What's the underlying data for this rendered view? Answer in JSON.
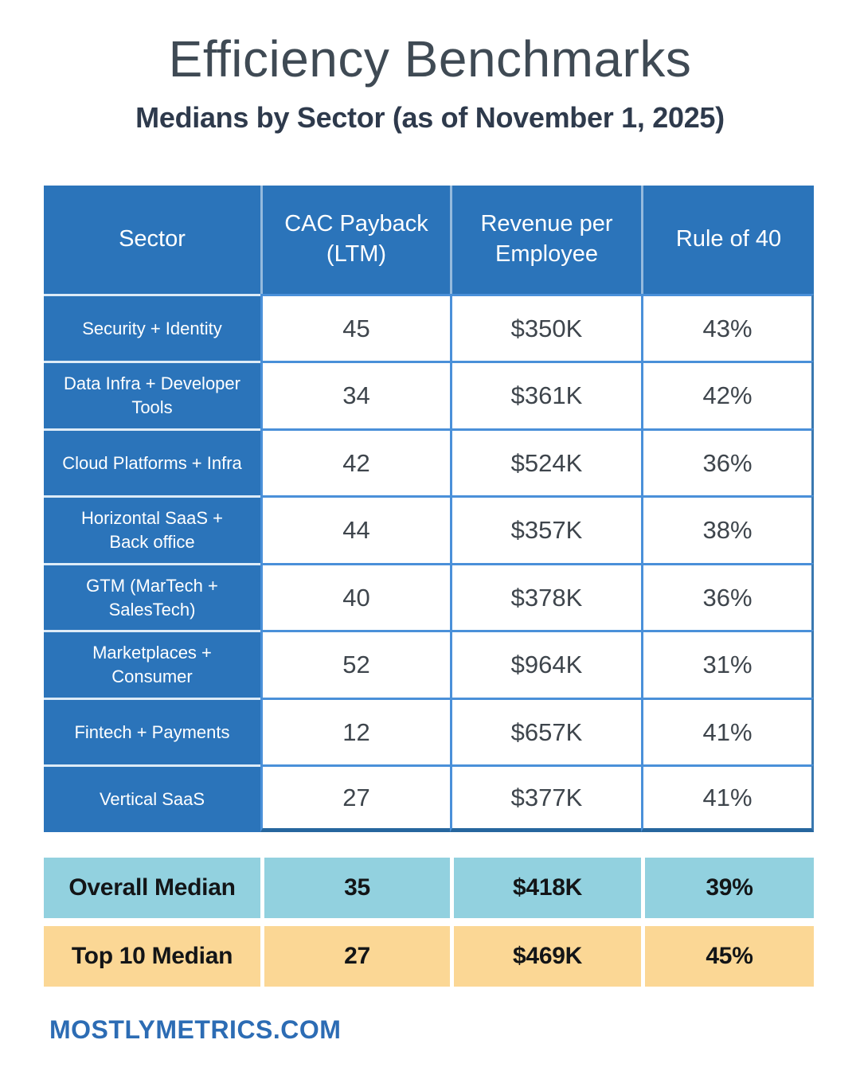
{
  "header": {
    "title": "Efficiency Benchmarks",
    "subtitle": "Medians by Sector (as of November 1, 2025)"
  },
  "chart_data": {
    "type": "table",
    "title": "Efficiency Benchmarks",
    "subtitle": "Medians by Sector (as of November 1, 2025)",
    "columns": [
      "Sector",
      "CAC Payback (LTM)",
      "Revenue per Employee",
      "Rule of 40"
    ],
    "rows": [
      [
        "Security + Identity",
        "45",
        "$350K",
        "43%"
      ],
      [
        "Data Infra + Developer Tools",
        "34",
        "$361K",
        "42%"
      ],
      [
        "Cloud Platforms + Infra",
        "42",
        "$524K",
        "36%"
      ],
      [
        "Horizontal SaaS + Back office",
        "44",
        "$357K",
        "38%"
      ],
      [
        "GTM (MarTech + SalesTech)",
        "40",
        "$378K",
        "36%"
      ],
      [
        "Marketplaces + Consumer",
        "52",
        "$964K",
        "31%"
      ],
      [
        "Fintech + Payments",
        "12",
        "$657K",
        "41%"
      ],
      [
        "Vertical SaaS",
        "27",
        "$377K",
        "41%"
      ]
    ],
    "summary_rows": [
      {
        "label": "Overall Median",
        "values": [
          "35",
          "$418K",
          "39%"
        ],
        "bg": "#92d1df"
      },
      {
        "label": "Top 10 Median",
        "values": [
          "27",
          "$469K",
          "45%"
        ],
        "bg": "#fbd795"
      }
    ]
  },
  "footer": {
    "site": "MOSTLYMETRICS.COM"
  },
  "colors": {
    "table_blue": "#2b74ba",
    "grid_blue": "#4a90d9",
    "table_outer_border": "#3a78b0",
    "table_bottom_border": "#26669e",
    "summary_overall_bg": "#92d1df",
    "summary_top10_bg": "#fbd795",
    "title_gray": "#3f4a54",
    "subtitle_navy": "#2e3a4c",
    "value_text": "#3e454c",
    "footer_blue": "#2c6cb4"
  }
}
